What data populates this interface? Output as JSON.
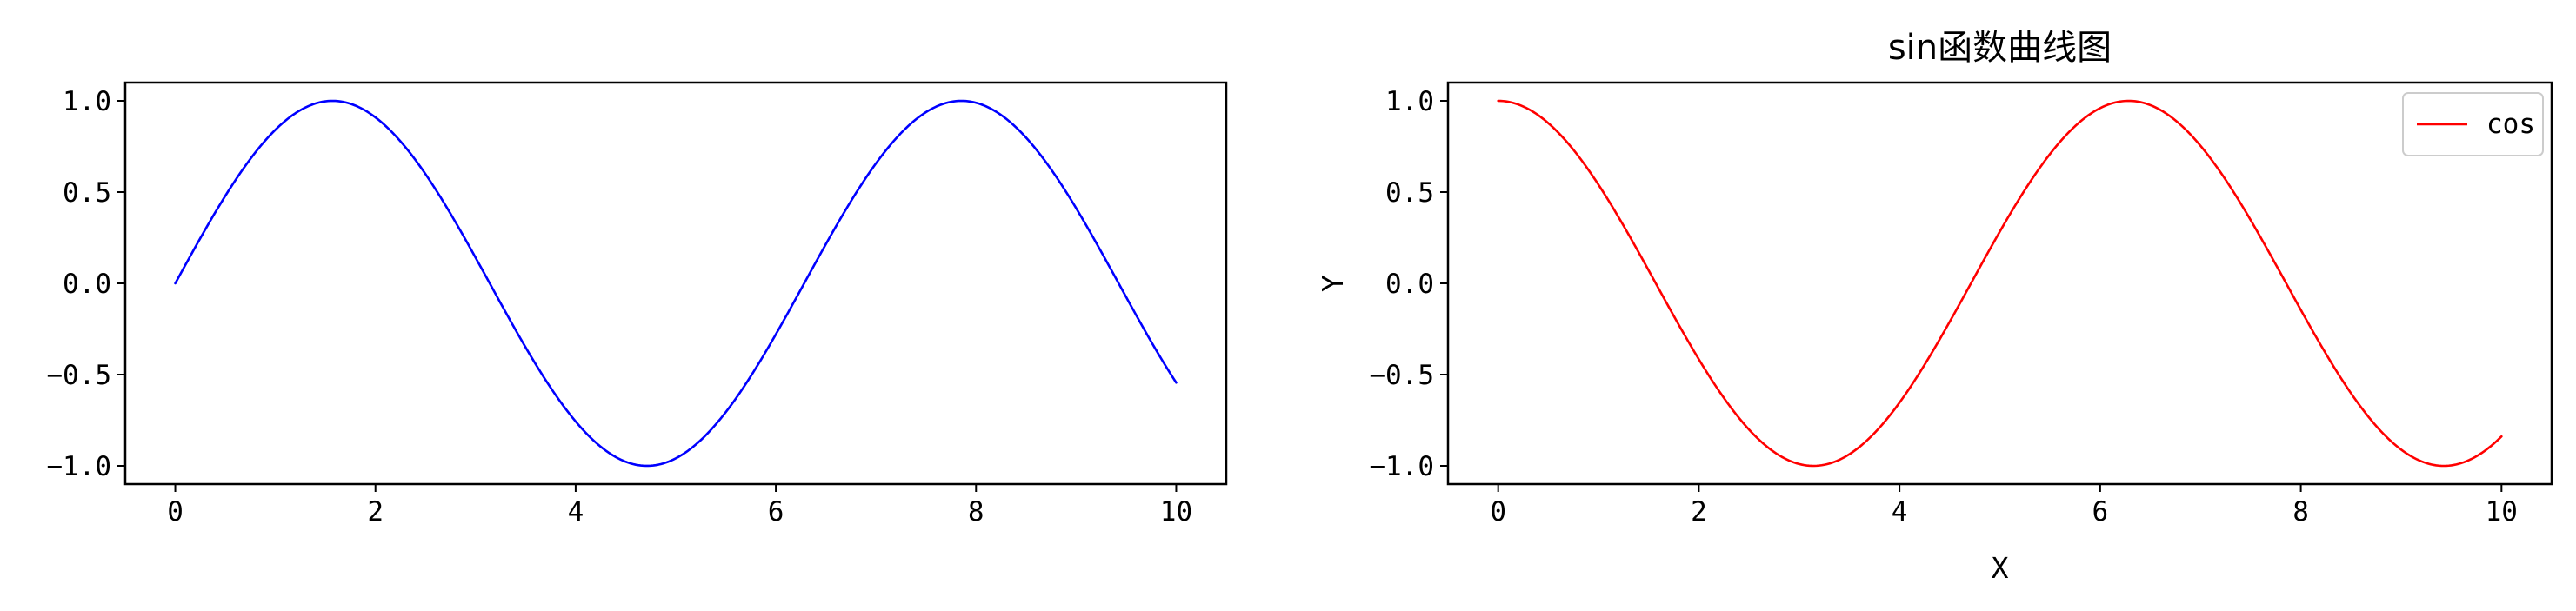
{
  "chart_data": [
    {
      "type": "line",
      "title": "",
      "xlabel": "",
      "ylabel": "",
      "xlim": [
        -0.5,
        10.5
      ],
      "ylim": [
        -1.1,
        1.1
      ],
      "xticks": [
        0,
        2,
        4,
        6,
        8,
        10
      ],
      "xtick_labels": [
        "0",
        "2",
        "4",
        "6",
        "8",
        "10"
      ],
      "yticks": [
        1.0,
        0.5,
        0.0,
        -0.5,
        -1.0
      ],
      "ytick_labels": [
        "1.0",
        "0.5",
        "0.0",
        "−0.5",
        "−1.0"
      ],
      "grid": false,
      "legend": null,
      "x": [
        0,
        0.5,
        1,
        1.5,
        2,
        2.5,
        3,
        3.5,
        4,
        4.5,
        5,
        5.5,
        6,
        6.5,
        7,
        7.5,
        8,
        8.5,
        9,
        9.5,
        10
      ],
      "series": [
        {
          "function": "sin",
          "color": "#0000ff",
          "values": [
            0.0,
            0.479,
            0.841,
            0.997,
            0.909,
            0.598,
            0.141,
            -0.351,
            -0.757,
            -0.978,
            -0.959,
            -0.706,
            -0.279,
            0.215,
            0.657,
            0.938,
            0.989,
            0.798,
            0.412,
            -0.075,
            -0.544
          ]
        }
      ]
    },
    {
      "type": "line",
      "title": "sin函数曲线图",
      "xlabel": "X",
      "ylabel": "Y",
      "xlim": [
        -0.5,
        10.5
      ],
      "ylim": [
        -1.1,
        1.1
      ],
      "xticks": [
        0,
        2,
        4,
        6,
        8,
        10
      ],
      "xtick_labels": [
        "0",
        "2",
        "4",
        "6",
        "8",
        "10"
      ],
      "yticks": [
        1.0,
        0.5,
        0.0,
        -0.5,
        -1.0
      ],
      "ytick_labels": [
        "1.0",
        "0.5",
        "0.0",
        "−0.5",
        "−1.0"
      ],
      "grid": false,
      "legend": "upper right",
      "x": [
        0,
        0.5,
        1,
        1.5,
        2,
        2.5,
        3,
        3.5,
        4,
        4.5,
        5,
        5.5,
        6,
        6.5,
        7,
        7.5,
        8,
        8.5,
        9,
        9.5,
        10
      ],
      "series": [
        {
          "name": "cos",
          "function": "cos",
          "color": "#ff0000",
          "values": [
            1.0,
            0.878,
            0.54,
            0.071,
            -0.416,
            -0.801,
            -0.99,
            -0.936,
            -0.654,
            -0.211,
            0.284,
            0.709,
            0.96,
            0.977,
            0.754,
            0.347,
            -0.146,
            -0.602,
            -0.911,
            -0.997,
            -0.839
          ]
        }
      ]
    }
  ]
}
